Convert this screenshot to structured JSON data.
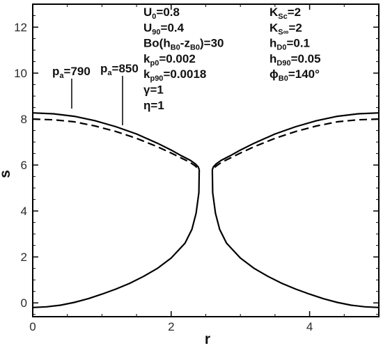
{
  "chart_data": {
    "type": "line",
    "title": "",
    "xlabel": "r",
    "ylabel": "s",
    "xlim": [
      0,
      5
    ],
    "ylim": [
      -0.6,
      13
    ],
    "grid": false,
    "x_ticks": [
      0,
      2,
      4
    ],
    "x_tick_labels": [
      "0",
      "2",
      "4"
    ],
    "y_ticks": [
      0,
      2,
      4,
      6,
      8,
      10,
      12
    ],
    "y_tick_labels": [
      "0",
      "2",
      "4",
      "6",
      "8",
      "10",
      "12"
    ],
    "series": [
      {
        "name": "pa=790",
        "label_main": "p",
        "label_sub": "a",
        "label_value": "=790",
        "style": "solid",
        "color": "#000000",
        "branches": [
          {
            "x": [
              0.0,
              0.3,
              0.6,
              0.9,
              1.2,
              1.5,
              1.8,
              2.0,
              2.15,
              2.28,
              2.35,
              2.39,
              2.405
            ],
            "y": [
              8.27,
              8.23,
              8.12,
              7.93,
              7.67,
              7.35,
              6.95,
              6.65,
              6.4,
              6.2,
              6.05,
              5.92,
              5.8
            ]
          },
          {
            "x": [
              2.405,
              2.4,
              2.36,
              2.3,
              2.2,
              2.0,
              1.8,
              1.6,
              1.4,
              1.2,
              1.0,
              0.8,
              0.6,
              0.4,
              0.2,
              0.0
            ],
            "y": [
              5.8,
              4.8,
              3.9,
              3.2,
              2.6,
              1.95,
              1.5,
              1.15,
              0.85,
              0.6,
              0.38,
              0.18,
              0.02,
              -0.1,
              -0.17,
              -0.2
            ]
          },
          {
            "x": [
              5.0,
              4.7,
              4.4,
              4.1,
              3.8,
              3.5,
              3.2,
              3.0,
              2.85,
              2.72,
              2.65,
              2.61,
              2.595
            ],
            "y": [
              8.27,
              8.23,
              8.12,
              7.93,
              7.67,
              7.35,
              6.95,
              6.65,
              6.4,
              6.2,
              6.05,
              5.92,
              5.8
            ]
          },
          {
            "x": [
              2.595,
              2.6,
              2.64,
              2.7,
              2.8,
              3.0,
              3.2,
              3.4,
              3.6,
              3.8,
              4.0,
              4.2,
              4.4,
              4.6,
              4.8,
              5.0
            ],
            "y": [
              5.8,
              4.8,
              3.9,
              3.2,
              2.6,
              1.95,
              1.5,
              1.15,
              0.85,
              0.6,
              0.38,
              0.18,
              0.02,
              -0.1,
              -0.17,
              -0.2
            ]
          }
        ]
      },
      {
        "name": "pa=850",
        "label_main": "p",
        "label_sub": "a",
        "label_value": "=850",
        "style": "dashed",
        "color": "#000000",
        "branches": [
          {
            "x": [
              0.0,
              0.3,
              0.6,
              0.9,
              1.2,
              1.5,
              1.8,
              2.0,
              2.15,
              2.27,
              2.34,
              2.38,
              2.395
            ],
            "y": [
              8.0,
              7.97,
              7.88,
              7.7,
              7.46,
              7.16,
              6.8,
              6.52,
              6.3,
              6.12,
              5.98,
              5.87,
              5.78
            ]
          },
          {
            "x": [
              5.0,
              4.7,
              4.4,
              4.1,
              3.8,
              3.5,
              3.2,
              3.0,
              2.85,
              2.73,
              2.66,
              2.62,
              2.605
            ],
            "y": [
              8.0,
              7.97,
              7.88,
              7.7,
              7.46,
              7.16,
              6.8,
              6.52,
              6.3,
              6.12,
              5.98,
              5.87,
              5.78
            ]
          }
        ]
      }
    ],
    "annotations": {
      "col1": [
        {
          "main": "U",
          "sub": "0",
          "rest": "=0.8"
        },
        {
          "main": "U",
          "sub": "90",
          "rest": "=0.4"
        },
        {
          "main": "Bo(h",
          "sub": "B0",
          "rest": "-z",
          "sub2": "B0",
          "rest2": ")=30"
        },
        {
          "main": "k",
          "sub": "p0",
          "rest": "=0.002"
        },
        {
          "main": "k",
          "sub": "p90",
          "rest": "=0.0018"
        },
        {
          "main": "γ",
          "sub": "",
          "rest": "=1"
        },
        {
          "main": "η",
          "sub": "",
          "rest": "=1"
        }
      ],
      "col2": [
        {
          "main": "K",
          "sub": "Sc",
          "rest": "=2"
        },
        {
          "main": "K",
          "sub": "S∞",
          "rest": "=2"
        },
        {
          "main": "h",
          "sub": "D0",
          "rest": "=0.1"
        },
        {
          "main": "h",
          "sub": "D90",
          "rest": "=0.05"
        },
        {
          "main": "ϕ",
          "sub": "B0",
          "rest": "=140°"
        }
      ]
    }
  }
}
